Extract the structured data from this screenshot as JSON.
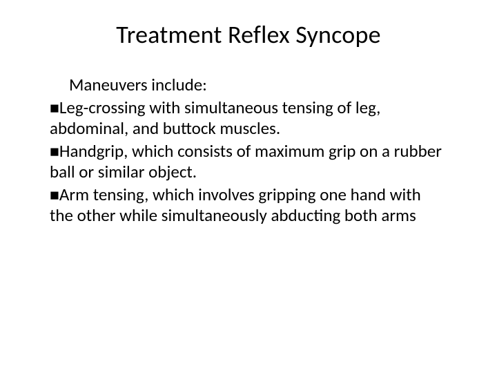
{
  "slide": {
    "title": "Treatment Reflex Syncope",
    "intro": "Maneuvers include:",
    "bullets": [
      "Leg-crossing with simultaneous tensing of leg, abdominal, and buttock muscles.",
      "Handgrip, which consists of maximum grip on a rubber ball or similar object.",
      "Arm tensing, which involves gripping one hand with the other while simultaneously abducting both arms"
    ],
    "colors": {
      "background": "#ffffff",
      "text": "#000000",
      "bullet_marker": "#000000"
    },
    "typography": {
      "title_fontsize": 36,
      "body_fontsize": 25,
      "font_family": "Calibri"
    },
    "bullet_marker_char": "■"
  }
}
